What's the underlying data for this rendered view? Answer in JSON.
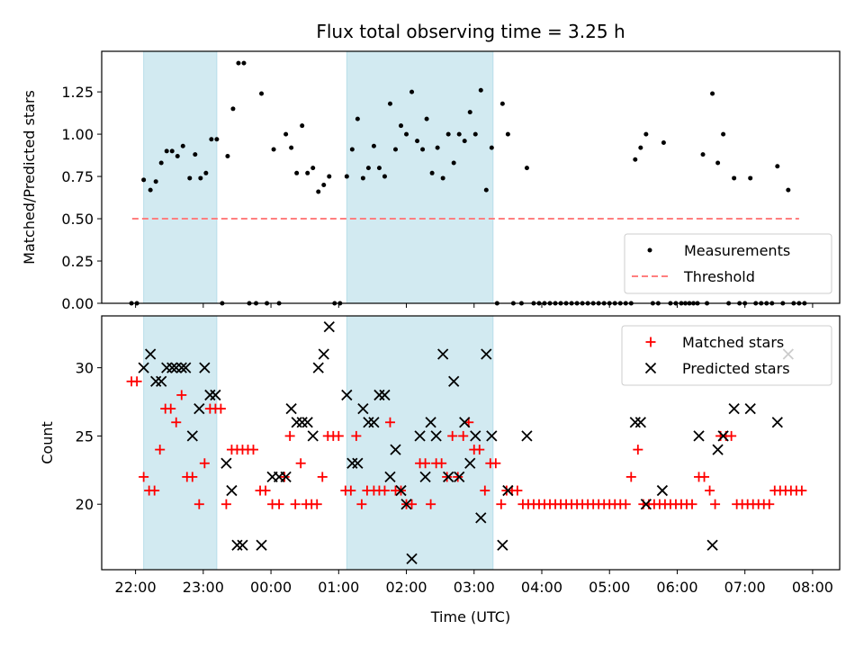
{
  "chart_data": {
    "type": "scatter",
    "title": "Flux total observing time = 3.25 h",
    "xlabel": "Time (UTC)",
    "x_unit": "hours since 22:00 UTC",
    "x_ticks": [
      {
        "value": 0,
        "label": "22:00"
      },
      {
        "value": 1,
        "label": "23:00"
      },
      {
        "value": 2,
        "label": "00:00"
      },
      {
        "value": 3,
        "label": "01:00"
      },
      {
        "value": 4,
        "label": "02:00"
      },
      {
        "value": 5,
        "label": "03:00"
      },
      {
        "value": 6,
        "label": "04:00"
      },
      {
        "value": 7,
        "label": "05:00"
      },
      {
        "value": 8,
        "label": "06:00"
      },
      {
        "value": 9,
        "label": "07:00"
      },
      {
        "value": 10,
        "label": "08:00"
      }
    ],
    "xlim": [
      -0.5,
      10.4
    ],
    "shaded_intervals": [
      [
        0.12,
        1.2
      ],
      [
        3.12,
        5.28
      ]
    ],
    "shade_color": "#add8e6",
    "top": {
      "ylabel": "Matched/Predicted stars",
      "ylim": [
        0,
        1.49
      ],
      "y_ticks": [
        {
          "value": 0,
          "label": "0.00"
        },
        {
          "value": 0.25,
          "label": "0.25"
        },
        {
          "value": 0.5,
          "label": "0.50"
        },
        {
          "value": 0.75,
          "label": "0.75"
        },
        {
          "value": 1.0,
          "label": "1.00"
        },
        {
          "value": 1.25,
          "label": "1.25"
        }
      ],
      "threshold": {
        "value": 0.5,
        "x_range": [
          -0.05,
          9.8
        ],
        "color": "#ff7f7f",
        "label": "Threshold"
      },
      "measurements_label": "Measurements",
      "measurements": [
        [
          -0.06,
          0
        ],
        [
          0.02,
          0
        ],
        [
          0.12,
          0.73
        ],
        [
          0.22,
          0.67
        ],
        [
          0.3,
          0.72
        ],
        [
          0.38,
          0.83
        ],
        [
          0.46,
          0.9
        ],
        [
          0.54,
          0.9
        ],
        [
          0.62,
          0.87
        ],
        [
          0.7,
          0.93
        ],
        [
          0.8,
          0.74
        ],
        [
          0.88,
          0.88
        ],
        [
          0.96,
          0.74
        ],
        [
          1.04,
          0.77
        ],
        [
          1.12,
          0.97
        ],
        [
          1.2,
          0.97
        ],
        [
          1.28,
          0
        ],
        [
          1.36,
          0.87
        ],
        [
          1.44,
          1.15
        ],
        [
          1.52,
          1.42
        ],
        [
          1.6,
          1.42
        ],
        [
          1.68,
          0
        ],
        [
          1.78,
          0
        ],
        [
          1.86,
          1.24
        ],
        [
          1.94,
          0
        ],
        [
          2.04,
          0.91
        ],
        [
          2.12,
          0
        ],
        [
          2.22,
          1.0
        ],
        [
          2.3,
          0.92
        ],
        [
          2.38,
          0.77
        ],
        [
          2.46,
          1.05
        ],
        [
          2.54,
          0.77
        ],
        [
          2.62,
          0.8
        ],
        [
          2.7,
          0.66
        ],
        [
          2.78,
          0.7
        ],
        [
          2.86,
          0.75
        ],
        [
          2.94,
          0
        ],
        [
          3.02,
          0
        ],
        [
          3.12,
          0.75
        ],
        [
          3.2,
          0.91
        ],
        [
          3.28,
          1.09
        ],
        [
          3.36,
          0.74
        ],
        [
          3.44,
          0.8
        ],
        [
          3.52,
          0.93
        ],
        [
          3.6,
          0.8
        ],
        [
          3.68,
          0.75
        ],
        [
          3.76,
          1.18
        ],
        [
          3.84,
          0.91
        ],
        [
          3.92,
          1.05
        ],
        [
          4.0,
          1.0
        ],
        [
          4.08,
          1.25
        ],
        [
          4.16,
          0.96
        ],
        [
          4.24,
          0.91
        ],
        [
          4.3,
          1.09
        ],
        [
          4.38,
          0.77
        ],
        [
          4.46,
          0.92
        ],
        [
          4.54,
          0.74
        ],
        [
          4.62,
          1.0
        ],
        [
          4.7,
          0.83
        ],
        [
          4.78,
          1.0
        ],
        [
          4.86,
          0.96
        ],
        [
          4.94,
          1.13
        ],
        [
          5.02,
          1.0
        ],
        [
          5.1,
          1.26
        ],
        [
          5.18,
          0.67
        ],
        [
          5.26,
          0.92
        ],
        [
          5.34,
          0
        ],
        [
          5.42,
          1.18
        ],
        [
          5.5,
          1.0
        ],
        [
          5.58,
          0
        ],
        [
          5.7,
          0
        ],
        [
          5.78,
          0.8
        ],
        [
          5.88,
          0
        ],
        [
          5.96,
          0
        ],
        [
          6.04,
          0
        ],
        [
          6.12,
          0
        ],
        [
          6.2,
          0
        ],
        [
          6.28,
          0
        ],
        [
          6.36,
          0
        ],
        [
          6.44,
          0
        ],
        [
          6.52,
          0
        ],
        [
          6.6,
          0
        ],
        [
          6.68,
          0
        ],
        [
          6.76,
          0
        ],
        [
          6.84,
          0
        ],
        [
          6.92,
          0
        ],
        [
          7.0,
          0
        ],
        [
          7.08,
          0
        ],
        [
          7.16,
          0
        ],
        [
          7.24,
          0
        ],
        [
          7.32,
          0
        ],
        [
          7.38,
          0.85
        ],
        [
          7.46,
          0.92
        ],
        [
          7.54,
          1.0
        ],
        [
          7.64,
          0
        ],
        [
          7.72,
          0
        ],
        [
          7.8,
          0.95
        ],
        [
          7.9,
          0
        ],
        [
          7.98,
          0
        ],
        [
          8.06,
          0
        ],
        [
          8.12,
          0
        ],
        [
          8.18,
          0
        ],
        [
          8.24,
          0
        ],
        [
          8.3,
          0
        ],
        [
          8.38,
          0.88
        ],
        [
          8.44,
          0
        ],
        [
          8.52,
          1.24
        ],
        [
          8.6,
          0.83
        ],
        [
          8.68,
          1.0
        ],
        [
          8.76,
          0
        ],
        [
          8.84,
          0.74
        ],
        [
          8.92,
          0
        ],
        [
          9.0,
          0
        ],
        [
          9.08,
          0.74
        ],
        [
          9.16,
          0
        ],
        [
          9.24,
          0
        ],
        [
          9.32,
          0
        ],
        [
          9.4,
          0
        ],
        [
          9.48,
          0.81
        ],
        [
          9.56,
          0
        ],
        [
          9.64,
          0.67
        ],
        [
          9.72,
          0
        ],
        [
          9.8,
          0
        ],
        [
          9.88,
          0
        ]
      ]
    },
    "bottom": {
      "ylabel": "Count",
      "ylim": [
        15.2,
        33.8
      ],
      "y_ticks": [
        {
          "value": 20,
          "label": "20"
        },
        {
          "value": 25,
          "label": "25"
        },
        {
          "value": 30,
          "label": "30"
        }
      ],
      "matched_label": "Matched stars",
      "predicted_label": "Predicted stars",
      "matched_color": "#ff0000",
      "predicted_color": "#000000",
      "matched": [
        [
          -0.06,
          29
        ],
        [
          0.02,
          29
        ],
        [
          0.12,
          22
        ],
        [
          0.2,
          21
        ],
        [
          0.28,
          21
        ],
        [
          0.36,
          24
        ],
        [
          0.44,
          27
        ],
        [
          0.52,
          27
        ],
        [
          0.6,
          26
        ],
        [
          0.68,
          28
        ],
        [
          0.76,
          22
        ],
        [
          0.84,
          22
        ],
        [
          0.94,
          20
        ],
        [
          1.02,
          23
        ],
        [
          1.1,
          27
        ],
        [
          1.18,
          27
        ],
        [
          1.26,
          27
        ],
        [
          1.34,
          20
        ],
        [
          1.42,
          24
        ],
        [
          1.5,
          24
        ],
        [
          1.58,
          24
        ],
        [
          1.66,
          24
        ],
        [
          1.74,
          24
        ],
        [
          1.84,
          21
        ],
        [
          1.92,
          21
        ],
        [
          2.02,
          20
        ],
        [
          2.12,
          20
        ],
        [
          2.2,
          22
        ],
        [
          2.28,
          25
        ],
        [
          2.36,
          20
        ],
        [
          2.44,
          23
        ],
        [
          2.52,
          20
        ],
        [
          2.6,
          20
        ],
        [
          2.68,
          20
        ],
        [
          2.76,
          22
        ],
        [
          2.84,
          25
        ],
        [
          2.92,
          25
        ],
        [
          3.0,
          25
        ],
        [
          3.1,
          21
        ],
        [
          3.18,
          21
        ],
        [
          3.26,
          25
        ],
        [
          3.34,
          20
        ],
        [
          3.42,
          21
        ],
        [
          3.52,
          21
        ],
        [
          3.6,
          21
        ],
        [
          3.68,
          21
        ],
        [
          3.76,
          26
        ],
        [
          3.84,
          21
        ],
        [
          3.92,
          21
        ],
        [
          4.0,
          20
        ],
        [
          4.08,
          20
        ],
        [
          4.2,
          23
        ],
        [
          4.28,
          23
        ],
        [
          4.36,
          20
        ],
        [
          4.44,
          23
        ],
        [
          4.52,
          23
        ],
        [
          4.6,
          22
        ],
        [
          4.68,
          25
        ],
        [
          4.76,
          22
        ],
        [
          4.84,
          25
        ],
        [
          4.92,
          26
        ],
        [
          5.0,
          24
        ],
        [
          5.08,
          24
        ],
        [
          5.16,
          21
        ],
        [
          5.24,
          23
        ],
        [
          5.32,
          23
        ],
        [
          5.4,
          20
        ],
        [
          5.48,
          21
        ],
        [
          5.56,
          21
        ],
        [
          5.64,
          21
        ],
        [
          5.72,
          20
        ],
        [
          5.8,
          20
        ],
        [
          5.88,
          20
        ],
        [
          5.96,
          20
        ],
        [
          6.04,
          20
        ],
        [
          6.12,
          20
        ],
        [
          6.2,
          20
        ],
        [
          6.28,
          20
        ],
        [
          6.36,
          20
        ],
        [
          6.44,
          20
        ],
        [
          6.52,
          20
        ],
        [
          6.6,
          20
        ],
        [
          6.68,
          20
        ],
        [
          6.76,
          20
        ],
        [
          6.84,
          20
        ],
        [
          6.92,
          20
        ],
        [
          7.0,
          20
        ],
        [
          7.08,
          20
        ],
        [
          7.16,
          20
        ],
        [
          7.24,
          20
        ],
        [
          7.32,
          22
        ],
        [
          7.42,
          24
        ],
        [
          7.5,
          20
        ],
        [
          7.58,
          20
        ],
        [
          7.66,
          20
        ],
        [
          7.74,
          20
        ],
        [
          7.82,
          20
        ],
        [
          7.9,
          20
        ],
        [
          7.98,
          20
        ],
        [
          8.06,
          20
        ],
        [
          8.14,
          20
        ],
        [
          8.22,
          20
        ],
        [
          8.32,
          22
        ],
        [
          8.4,
          22
        ],
        [
          8.48,
          21
        ],
        [
          8.56,
          20
        ],
        [
          8.64,
          25
        ],
        [
          8.72,
          25
        ],
        [
          8.8,
          25
        ],
        [
          8.88,
          20
        ],
        [
          8.96,
          20
        ],
        [
          9.04,
          20
        ],
        [
          9.12,
          20
        ],
        [
          9.2,
          20
        ],
        [
          9.28,
          20
        ],
        [
          9.36,
          20
        ],
        [
          9.44,
          21
        ],
        [
          9.52,
          21
        ],
        [
          9.6,
          21
        ],
        [
          9.68,
          21
        ],
        [
          9.76,
          21
        ],
        [
          9.84,
          21
        ]
      ],
      "predicted": [
        [
          0.12,
          30
        ],
        [
          0.22,
          31
        ],
        [
          0.3,
          29
        ],
        [
          0.38,
          29
        ],
        [
          0.46,
          30
        ],
        [
          0.54,
          30
        ],
        [
          0.6,
          30
        ],
        [
          0.68,
          30
        ],
        [
          0.74,
          30
        ],
        [
          0.84,
          25
        ],
        [
          0.94,
          27
        ],
        [
          1.02,
          30
        ],
        [
          1.1,
          28
        ],
        [
          1.18,
          28
        ],
        [
          1.34,
          23
        ],
        [
          1.42,
          21
        ],
        [
          1.5,
          17
        ],
        [
          1.58,
          17
        ],
        [
          1.86,
          17
        ],
        [
          2.02,
          22
        ],
        [
          2.12,
          22
        ],
        [
          2.22,
          22
        ],
        [
          2.3,
          27
        ],
        [
          2.38,
          26
        ],
        [
          2.46,
          26
        ],
        [
          2.54,
          26
        ],
        [
          2.62,
          25
        ],
        [
          2.7,
          30
        ],
        [
          2.78,
          31
        ],
        [
          2.86,
          33
        ],
        [
          3.12,
          28
        ],
        [
          3.2,
          23
        ],
        [
          3.28,
          23
        ],
        [
          3.36,
          27
        ],
        [
          3.44,
          26
        ],
        [
          3.52,
          26
        ],
        [
          3.6,
          28
        ],
        [
          3.68,
          28
        ],
        [
          3.76,
          22
        ],
        [
          3.84,
          24
        ],
        [
          3.92,
          21
        ],
        [
          4.0,
          20
        ],
        [
          4.08,
          16
        ],
        [
          4.2,
          25
        ],
        [
          4.28,
          22
        ],
        [
          4.36,
          26
        ],
        [
          4.44,
          25
        ],
        [
          4.54,
          31
        ],
        [
          4.62,
          22
        ],
        [
          4.7,
          29
        ],
        [
          4.78,
          22
        ],
        [
          4.86,
          26
        ],
        [
          4.94,
          23
        ],
        [
          5.02,
          25
        ],
        [
          5.1,
          19
        ],
        [
          5.18,
          31
        ],
        [
          5.26,
          25
        ],
        [
          5.42,
          17
        ],
        [
          5.5,
          21
        ],
        [
          5.78,
          25
        ],
        [
          7.38,
          26
        ],
        [
          7.46,
          26
        ],
        [
          7.54,
          20
        ],
        [
          7.78,
          21
        ],
        [
          8.32,
          25
        ],
        [
          8.52,
          17
        ],
        [
          8.6,
          24
        ],
        [
          8.68,
          25
        ],
        [
          8.84,
          27
        ],
        [
          9.08,
          27
        ],
        [
          9.48,
          26
        ],
        [
          9.64,
          31
        ]
      ]
    }
  }
}
